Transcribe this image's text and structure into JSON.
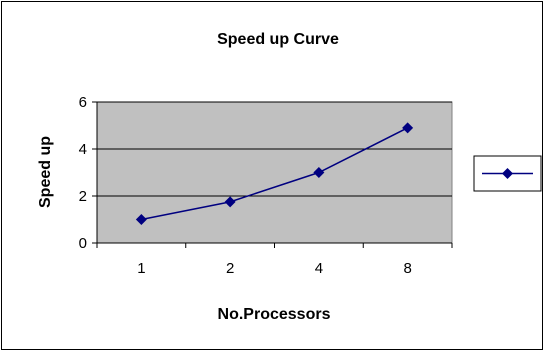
{
  "chart_data": {
    "type": "line",
    "title": "Speed up Curve",
    "xlabel": "No.Processors",
    "ylabel": "Speed up",
    "categories": [
      "1",
      "2",
      "4",
      "8"
    ],
    "series": [
      {
        "values": [
          1.0,
          1.75,
          3.0,
          4.9
        ],
        "color": "#000080",
        "marker": "diamond"
      }
    ],
    "ylim": [
      0,
      6
    ],
    "yticks": [
      0,
      2,
      4,
      6
    ],
    "grid": true,
    "plot_background": "#C0C0C0",
    "legend": {
      "placement": "right",
      "show_name": false
    }
  }
}
